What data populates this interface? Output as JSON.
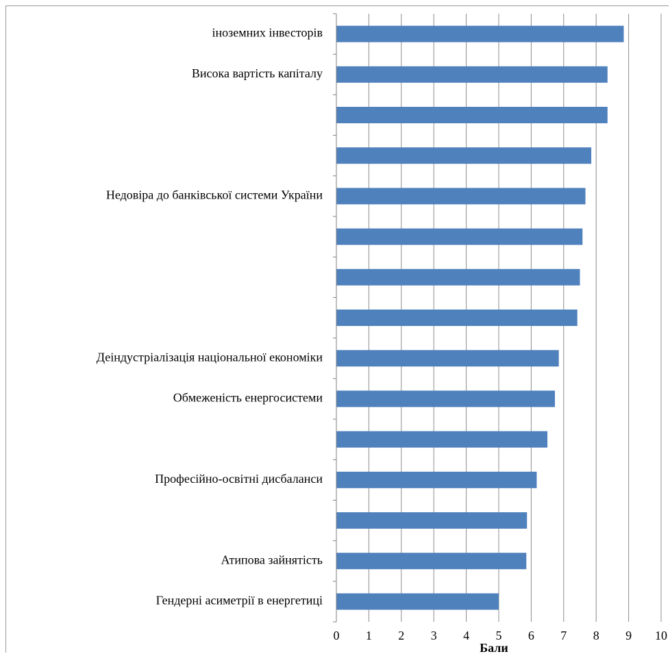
{
  "chart_data": {
    "type": "bar",
    "orientation": "horizontal",
    "categories": [
      "іноземних інвесторів",
      "Висока вартість капіталу",
      "",
      "",
      "Недовіра до банківської системи України",
      "",
      "",
      "",
      "Деіндустріалізація національної економіки",
      "Обмеженість енергосистеми",
      "",
      "Професійно-освітні дисбаланси",
      "",
      "Атипова зайнятість",
      "Гендерні асиметрії в енергетиці"
    ],
    "values": [
      8.85,
      8.35,
      8.35,
      7.85,
      7.67,
      7.58,
      7.5,
      7.42,
      6.85,
      6.73,
      6.5,
      6.17,
      5.87,
      5.85,
      5.0
    ],
    "xlabel": "Бали",
    "xlim": [
      0,
      10
    ],
    "xticks": [
      "0",
      "1",
      "2",
      "3",
      "4",
      "5",
      "6",
      "7",
      "8",
      "9",
      "10"
    ],
    "grid": "vertical",
    "bar_color": "#4f81bd",
    "grid_color": "#8c8c8c",
    "legend": "none"
  }
}
